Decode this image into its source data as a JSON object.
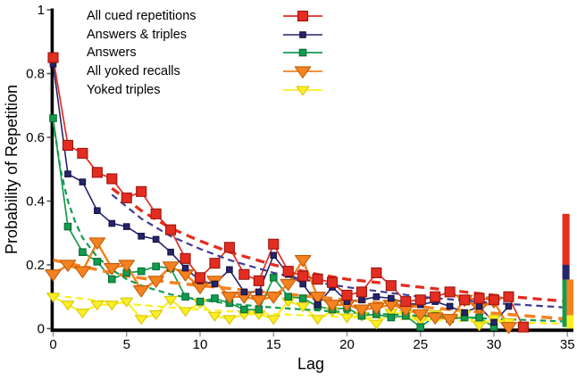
{
  "chart_data": {
    "type": "line",
    "title": "",
    "xlabel": "Lag",
    "ylabel": "Probability of Repetition",
    "xlim": [
      0,
      35
    ],
    "ylim": [
      0,
      1
    ],
    "grid": false,
    "legend_position": "top-left",
    "x_ticks": [
      0,
      5,
      10,
      15,
      20,
      25,
      30,
      35
    ],
    "y_ticks": [
      0,
      0.2,
      0.4,
      0.6,
      0.8,
      1
    ],
    "y_tick_labels": [
      "0",
      "0.2",
      "0.4",
      "0.6",
      "0.8",
      "1"
    ],
    "axis_color": "#000000",
    "series": [
      {
        "name": "All cued repetitions",
        "color": "#e32d20",
        "edge": "#9c1410",
        "marker": "square",
        "marker_size": 11,
        "line_width": 1.7,
        "values": [
          0.85,
          0.575,
          0.55,
          0.49,
          0.47,
          0.41,
          0.43,
          0.36,
          0.31,
          0.22,
          0.16,
          0.205,
          0.255,
          0.17,
          0.15,
          0.265,
          0.18,
          0.165,
          0.155,
          0.145,
          0.105,
          0.115,
          0.175,
          0.135,
          0.085,
          0.09,
          0.1,
          0.115,
          0.09,
          0.095,
          0.09,
          0.1,
          0.005
        ]
      },
      {
        "name": "Answers & triples",
        "color": "#26246b",
        "edge": "#14123f",
        "marker": "square",
        "marker_size": 6.5,
        "line_width": 1.6,
        "values": [
          0.83,
          0.485,
          0.46,
          0.37,
          0.33,
          0.32,
          0.29,
          0.28,
          0.24,
          0.19,
          0.15,
          0.14,
          0.185,
          0.115,
          0.115,
          0.23,
          0.17,
          0.14,
          0.075,
          0.13,
          0.085,
          0.09,
          0.1,
          0.095,
          0.08,
          0.075,
          0.085,
          0.07,
          0.05,
          0.07,
          0.02,
          0.07
        ]
      },
      {
        "name": "Answers",
        "color": "#129c4d",
        "edge": "#0a6b33",
        "marker": "square",
        "marker_size": 7.5,
        "line_width": 1.7,
        "values": [
          0.66,
          0.32,
          0.24,
          0.21,
          0.155,
          0.175,
          0.18,
          0.195,
          0.19,
          0.1,
          0.085,
          0.095,
          0.08,
          0.06,
          0.06,
          0.16,
          0.1,
          0.095,
          0.07,
          0.06,
          0.065,
          0.04,
          0.045,
          0.035,
          0.04,
          0.005,
          0.04,
          0.03,
          0.035,
          0.035,
          0.005
        ]
      },
      {
        "name": "All yoked recalls",
        "color": "#f58220",
        "edge": "#c05c06",
        "marker": "triangle-down",
        "marker_size": 14,
        "line_width": 2.5,
        "values": [
          0.17,
          0.2,
          0.18,
          0.27,
          0.19,
          0.2,
          0.12,
          0.15,
          0.195,
          0.17,
          0.13,
          0.15,
          0.1,
          0.1,
          0.09,
          0.1,
          0.14,
          0.215,
          0.1,
          0.075,
          0.075,
          0.06,
          0.065,
          0.075,
          0.06,
          0.045,
          0.035,
          0.03,
          0.09,
          0.065,
          0.085,
          0.005
        ]
      },
      {
        "name": "Yoked triples",
        "color": "#fbee23",
        "edge": "#d8c70c",
        "marker": "triangle-down",
        "marker_size": 11,
        "line_width": 2.1,
        "values": [
          0.1,
          0.075,
          0.05,
          0.075,
          0.075,
          0.085,
          0.03,
          0.045,
          0.09,
          0.055,
          0.08,
          0.04,
          0.03,
          0.045,
          0.045,
          0.03,
          0.085,
          0.07,
          0.03,
          0.055,
          0.035,
          0.04,
          0.015,
          0.05,
          0.045,
          0.025,
          0.045,
          0.025,
          0.045,
          0.01,
          0.03,
          0.02
        ]
      }
    ],
    "fits": [
      {
        "series": "All cued repetitions",
        "color": "#e32d20",
        "width": 3.3,
        "dash": "10,6.5",
        "points": [
          [
            4,
            0.44
          ],
          [
            6,
            0.37
          ],
          [
            8,
            0.315
          ],
          [
            10,
            0.275
          ],
          [
            12,
            0.24
          ],
          [
            15,
            0.2
          ],
          [
            18,
            0.17
          ],
          [
            20,
            0.155
          ],
          [
            25,
            0.13
          ],
          [
            30,
            0.105
          ],
          [
            35,
            0.085
          ]
        ]
      },
      {
        "series": "Answers & triples",
        "color": "#3f3d8f",
        "width": 2.2,
        "dash": "7.5,5",
        "points": [
          [
            4,
            0.42
          ],
          [
            6,
            0.345
          ],
          [
            8,
            0.29
          ],
          [
            10,
            0.25
          ],
          [
            12,
            0.215
          ],
          [
            15,
            0.175
          ],
          [
            18,
            0.145
          ],
          [
            20,
            0.13
          ],
          [
            25,
            0.1
          ],
          [
            30,
            0.08
          ],
          [
            35,
            0.066
          ]
        ]
      },
      {
        "series": "Answers",
        "color": "#129c4d",
        "width": 2.2,
        "dash": "6.5,4.5",
        "points": [
          [
            0,
            0.65
          ],
          [
            0.5,
            0.5
          ],
          [
            1,
            0.4
          ],
          [
            1.5,
            0.335
          ],
          [
            2,
            0.285
          ],
          [
            3,
            0.225
          ],
          [
            4,
            0.185
          ],
          [
            5,
            0.155
          ],
          [
            6,
            0.135
          ],
          [
            8,
            0.107
          ],
          [
            10,
            0.09
          ],
          [
            12,
            0.078
          ],
          [
            15,
            0.066
          ],
          [
            20,
            0.051
          ],
          [
            25,
            0.04
          ],
          [
            30,
            0.031
          ],
          [
            35,
            0.022
          ]
        ]
      },
      {
        "series": "All yoked recalls",
        "color": "#f58220",
        "width": 3.5,
        "dash": "12,7",
        "points": [
          [
            0,
            0.215
          ],
          [
            3,
            0.185
          ],
          [
            5,
            0.165
          ],
          [
            8,
            0.145
          ],
          [
            10,
            0.135
          ],
          [
            15,
            0.112
          ],
          [
            20,
            0.09
          ],
          [
            25,
            0.068
          ],
          [
            30,
            0.048
          ],
          [
            35,
            0.03
          ]
        ]
      },
      {
        "series": "Yoked triples",
        "color": "#fbee23",
        "width": 2.2,
        "dash": "8,5",
        "points": [
          [
            0,
            0.105
          ],
          [
            3,
            0.088
          ],
          [
            5,
            0.078
          ],
          [
            8,
            0.066
          ],
          [
            10,
            0.06
          ],
          [
            15,
            0.046
          ],
          [
            20,
            0.036
          ],
          [
            25,
            0.028
          ],
          [
            30,
            0.021
          ],
          [
            35,
            0.015
          ]
        ]
      }
    ],
    "end_bars": [
      {
        "x_center": 34.9,
        "width_lags": 0.49,
        "segments": [
          {
            "series": "Answers",
            "color": "#129c4d",
            "from": 0.005,
            "to": 0.154
          },
          {
            "series": "Answers & triples",
            "color": "#26246b",
            "from": 0.154,
            "to": 0.2
          },
          {
            "series": "All cued repetitions",
            "color": "#e32d20",
            "from": 0.2,
            "to": 0.36
          }
        ]
      },
      {
        "x_center": 35.18,
        "width_lags": 0.46,
        "segments": [
          {
            "series": "Yoked triples",
            "color": "#fbee23",
            "from": 0.0,
            "to": 0.042
          },
          {
            "series": "All yoked recalls",
            "color": "#f58220",
            "from": 0.042,
            "to": 0.154
          }
        ]
      }
    ]
  }
}
